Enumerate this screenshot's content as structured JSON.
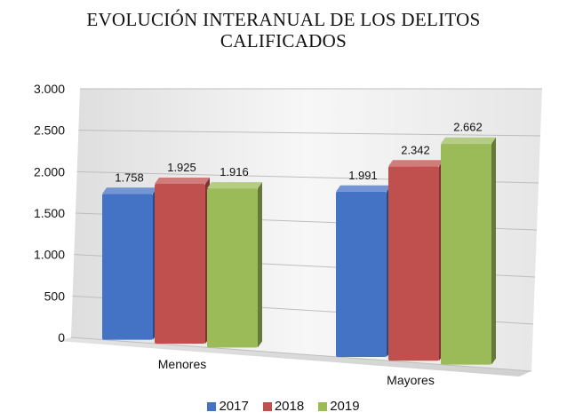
{
  "chart_data": {
    "type": "bar",
    "title": "EVOLUCIÓN INTERANUAL DE LOS DELITOS CALIFICADOS",
    "title_lines": [
      "EVOLUCIÓN INTERANUAL DE LOS DELITOS",
      "CALIFICADOS"
    ],
    "categories": [
      "Menores",
      "Mayores"
    ],
    "series": [
      {
        "name": "2017",
        "values": [
          1758,
          1991
        ],
        "labels": [
          "1.758",
          "1.991"
        ],
        "color": "#4472c4"
      },
      {
        "name": "2018",
        "values": [
          1925,
          2342
        ],
        "labels": [
          "1.925",
          "2.342"
        ],
        "color": "#c0504d"
      },
      {
        "name": "2019",
        "values": [
          1916,
          2662
        ],
        "labels": [
          "1.916",
          "2.662"
        ],
        "color": "#9bbb59"
      }
    ],
    "ylim": [
      0,
      3000
    ],
    "yticks": [
      0,
      500,
      1000,
      1500,
      2000,
      2500,
      3000
    ],
    "ytick_labels": [
      "0",
      "500",
      "1.000",
      "1.500",
      "2.000",
      "2.500",
      "3.000"
    ],
    "grid": true,
    "legend_position": "bottom",
    "style": "3d"
  }
}
